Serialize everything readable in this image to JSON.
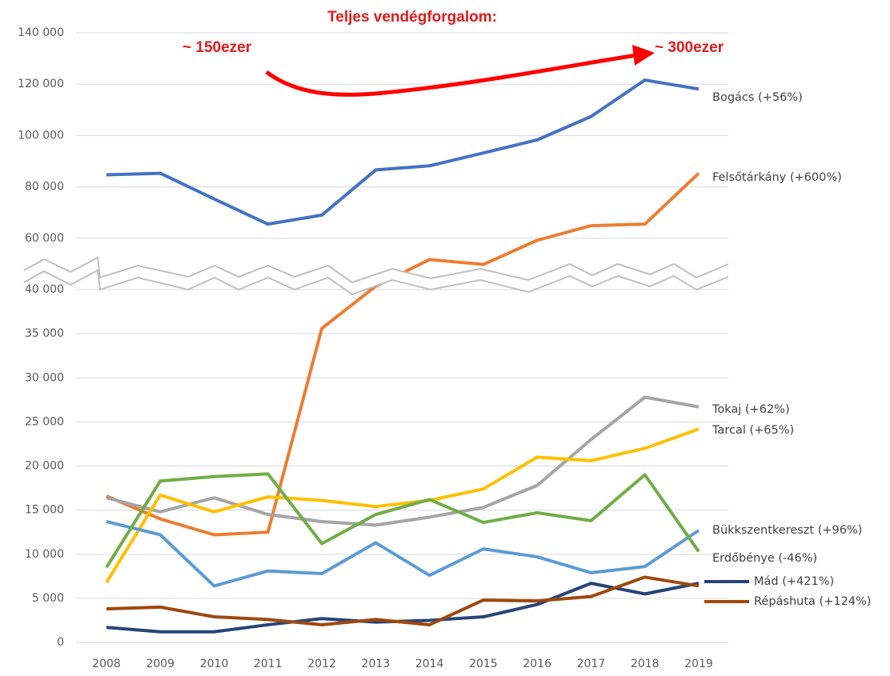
{
  "chart_data": {
    "type": "line",
    "title": "Teljes vendégforgalom:",
    "annotations": [
      "~ 150ezer",
      "~ 300ezer"
    ],
    "categories": [
      "2008",
      "2009",
      "2010",
      "2011",
      "2012",
      "2013",
      "2014",
      "2015",
      "2016",
      "2017",
      "2018",
      "2019"
    ],
    "ylim": [
      0,
      140000
    ],
    "y_break": 40000,
    "yticks": [
      0,
      {
        "value": 5000,
        "label": "5 000"
      },
      {
        "value": 10000,
        "label": "10 000"
      },
      {
        "value": 15000,
        "label": "15 000"
      },
      {
        "value": 20000,
        "label": "20 000"
      },
      {
        "value": 25000,
        "label": "25 000"
      },
      {
        "value": 30000,
        "label": "30 000"
      },
      {
        "value": 35000,
        "label": "35 000"
      },
      {
        "value": 40000,
        "label": "40 000"
      },
      {
        "value": 60000,
        "label": "60 000"
      },
      {
        "value": 80000,
        "label": "80 000"
      },
      {
        "value": 100000,
        "label": "100 000"
      },
      {
        "value": 120000,
        "label": "120 000"
      },
      {
        "value": 140000,
        "label": "140 000"
      }
    ],
    "grid": true,
    "series": [
      {
        "name": "Bogács (+56%)",
        "color": "#4472c4",
        "values": [
          84700,
          85300,
          75300,
          65500,
          69000,
          86600,
          88200,
          93200,
          98300,
          107400,
          121600,
          118100
        ]
      },
      {
        "name": "Felsőtárkány (+600%)",
        "color": "#ed7d31",
        "values": [
          16600,
          14000,
          12200,
          12500,
          35600,
          41300,
          51700,
          49800,
          59200,
          64900,
          65500,
          85300
        ]
      },
      {
        "name": "Tokaj (+62%)",
        "color": "#a5a5a5",
        "values": [
          16400,
          14800,
          16400,
          14500,
          13700,
          13300,
          14200,
          15300,
          17800,
          23000,
          27800,
          26700
        ]
      },
      {
        "name": "Tarcal (+65%)",
        "color": "#ffc000",
        "values": [
          6800,
          16700,
          14800,
          16500,
          16100,
          15400,
          16100,
          17400,
          21000,
          20600,
          22000,
          24200
        ]
      },
      {
        "name": "Bükkszentkereszt (+96%)",
        "color": "#5b9bd5",
        "values": [
          13700,
          12200,
          6400,
          8100,
          7800,
          11300,
          7600,
          10600,
          9700,
          7900,
          8600,
          12700
        ]
      },
      {
        "name": "Erdőbénye (-46%)",
        "color": "#70ad47",
        "values": [
          8500,
          18300,
          18800,
          19100,
          11200,
          14500,
          16200,
          13600,
          14700,
          13800,
          19000,
          10300
        ]
      },
      {
        "name": "Mád (+421%)",
        "color": "#264478",
        "values": [
          1700,
          1200,
          1200,
          2000,
          2700,
          2300,
          2500,
          2900,
          4300,
          6700,
          5500,
          6700
        ]
      },
      {
        "name": "Répáshuta (+124%)",
        "color": "#9e480e",
        "values": [
          3800,
          4000,
          2900,
          2600,
          2000,
          2600,
          2000,
          4800,
          4700,
          5200,
          7400,
          6400
        ]
      }
    ]
  }
}
